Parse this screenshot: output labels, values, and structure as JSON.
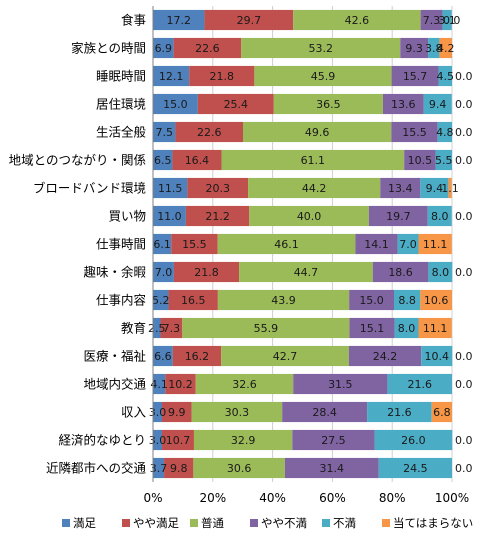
{
  "chart_data": {
    "type": "bar",
    "orientation": "horizontal",
    "stacked": "100%",
    "categories": [
      "食事",
      "家族との時間",
      "睡眠時間",
      "居住環境",
      "生活全般",
      "地域とのつながり・関係",
      "ブロードバンド環境",
      "買い物",
      "仕事時間",
      "趣味・余暇",
      "仕事内容",
      "教育",
      "医療・福祉",
      "地域内交通",
      "収入",
      "経済的なゆとり",
      "近隣都市への交通"
    ],
    "series": [
      {
        "name": "満足",
        "color": "#4F81BD",
        "values": [
          17.2,
          6.9,
          12.1,
          15.0,
          7.5,
          6.5,
          11.5,
          11.0,
          6.1,
          7.0,
          5.2,
          2.5,
          6.6,
          4.1,
          3.0,
          3.0,
          3.7
        ]
      },
      {
        "name": "やや満足",
        "color": "#C0504D",
        "values": [
          29.7,
          22.6,
          21.8,
          25.4,
          22.6,
          16.4,
          20.3,
          21.2,
          15.5,
          21.8,
          16.5,
          7.3,
          16.2,
          10.2,
          9.9,
          10.7,
          9.8
        ]
      },
      {
        "name": "普通",
        "color": "#9BBB59",
        "values": [
          42.6,
          53.2,
          45.9,
          36.5,
          49.6,
          61.1,
          44.2,
          40.0,
          46.1,
          44.7,
          43.9,
          55.9,
          42.7,
          32.6,
          30.3,
          32.9,
          30.6
        ]
      },
      {
        "name": "やや不満",
        "color": "#8064A2",
        "values": [
          7.3,
          9.3,
          15.7,
          13.6,
          15.5,
          10.5,
          13.4,
          19.7,
          14.1,
          18.6,
          15.0,
          15.1,
          24.2,
          31.5,
          28.4,
          27.5,
          31.4
        ]
      },
      {
        "name": "不満",
        "color": "#4BACC6",
        "values": [
          3.1,
          3.8,
          4.5,
          9.4,
          4.8,
          5.5,
          9.4,
          8.0,
          7.0,
          8.0,
          8.8,
          8.0,
          10.4,
          21.6,
          21.6,
          26.0,
          24.5
        ]
      },
      {
        "name": "当てはまらない",
        "color": "#F79646",
        "values": [
          0.0,
          4.2,
          0.0,
          0.0,
          0.0,
          0.0,
          1.1,
          0.0,
          11.1,
          0.0,
          10.6,
          11.1,
          0.0,
          0.0,
          6.8,
          0.0,
          0.0
        ]
      }
    ],
    "xlim": [
      0,
      100
    ],
    "x_ticks": [
      "0%",
      "20%",
      "40%",
      "60%",
      "80%",
      "100%"
    ],
    "grid": true,
    "legend_position": "bottom"
  }
}
